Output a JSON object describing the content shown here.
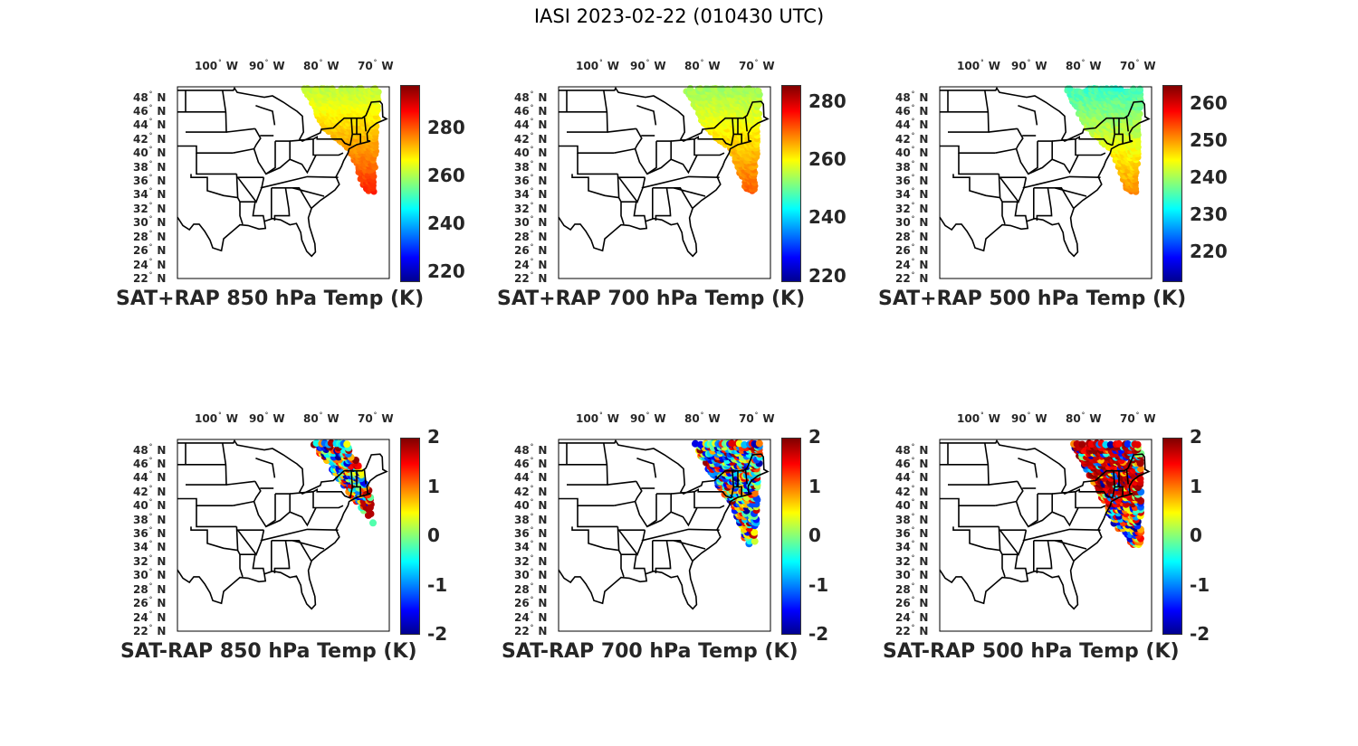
{
  "title": "IASI 2023-02-22 (010430 UTC)",
  "lon_ticks": [
    "100",
    "90",
    "80",
    "70"
  ],
  "lon_hemisphere": "W",
  "lat_ticks": [
    "48",
    "46",
    "44",
    "42",
    "40",
    "38",
    "36",
    "34",
    "32",
    "30",
    "28",
    "26",
    "24",
    "22"
  ],
  "lat_hemisphere": "N",
  "panels": [
    {
      "title": "SAT+RAP 850 hPa Temp (K)",
      "colorbar": {
        "min": 216,
        "max": 298,
        "ticks": [
          "220",
          "240",
          "260",
          "280"
        ]
      },
      "obs_range": [
        262,
        286
      ]
    },
    {
      "title": "SAT+RAP 700 hPa Temp (K)",
      "colorbar": {
        "min": 218,
        "max": 286,
        "ticks": [
          "220",
          "240",
          "260",
          "280"
        ]
      },
      "obs_range": [
        254,
        272
      ]
    },
    {
      "title": "SAT+RAP 500 hPa Temp (K)",
      "colorbar": {
        "min": 212,
        "max": 265,
        "ticks": [
          "220",
          "230",
          "240",
          "250",
          "260"
        ]
      },
      "obs_range": [
        235,
        252
      ]
    },
    {
      "title": "SAT-RAP 850 hPa Temp (K)",
      "colorbar": {
        "min": -2,
        "max": 2,
        "ticks": [
          "-2",
          "-1",
          "0",
          "1",
          "2"
        ]
      },
      "obs_range": [
        -2,
        2
      ]
    },
    {
      "title": "SAT-RAP 700 hPa Temp (K)",
      "colorbar": {
        "min": -2,
        "max": 2,
        "ticks": [
          "-2",
          "-1",
          "0",
          "1",
          "2"
        ]
      },
      "obs_range": [
        -2,
        2
      ]
    },
    {
      "title": "SAT-RAP 500 hPa Temp (K)",
      "colorbar": {
        "min": -2,
        "max": 2,
        "ticks": [
          "-2",
          "-1",
          "0",
          "1",
          "2"
        ]
      },
      "obs_range": [
        -2,
        2
      ]
    }
  ],
  "colormap": "jet"
}
